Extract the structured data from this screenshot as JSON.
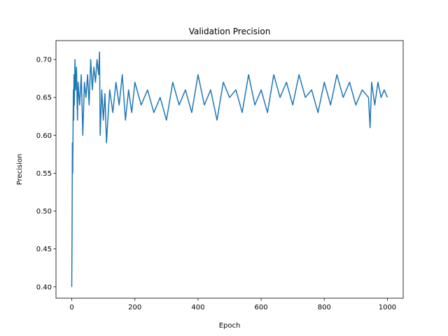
{
  "chart_data": {
    "type": "line",
    "title": "Validation Precision",
    "xlabel": "Epoch",
    "ylabel": "Precision",
    "xlim": [
      -50,
      1050
    ],
    "ylim": [
      0.385,
      0.725
    ],
    "xticks": [
      0,
      200,
      400,
      600,
      800,
      1000
    ],
    "yticks": [
      0.4,
      0.45,
      0.5,
      0.55,
      0.6,
      0.65,
      0.7
    ],
    "xtick_labels": [
      "0",
      "200",
      "400",
      "600",
      "800",
      "1000"
    ],
    "ytick_labels": [
      "0.40",
      "0.45",
      "0.50",
      "0.55",
      "0.60",
      "0.65",
      "0.70"
    ],
    "grid": false,
    "color": "#1f77b4",
    "series": [
      {
        "x": [
          0,
          1,
          2,
          3,
          4,
          5,
          6,
          7,
          8,
          10,
          12,
          15,
          18,
          20,
          25,
          30,
          35,
          40,
          45,
          50,
          55,
          60,
          65,
          70,
          75,
          80,
          85,
          88,
          90,
          95,
          100,
          105,
          110,
          120,
          130,
          140,
          150,
          160,
          170,
          180,
          190,
          200,
          220,
          240,
          260,
          280,
          300,
          320,
          340,
          360,
          380,
          400,
          420,
          440,
          460,
          480,
          500,
          520,
          540,
          560,
          580,
          600,
          620,
          640,
          660,
          680,
          700,
          720,
          740,
          760,
          780,
          800,
          820,
          840,
          860,
          880,
          900,
          920,
          940,
          945,
          950,
          960,
          970,
          980,
          990,
          1000
        ],
        "y": [
          0.4,
          0.48,
          0.59,
          0.55,
          0.6,
          0.66,
          0.62,
          0.68,
          0.64,
          0.7,
          0.66,
          0.69,
          0.62,
          0.67,
          0.64,
          0.68,
          0.6,
          0.67,
          0.65,
          0.68,
          0.64,
          0.7,
          0.66,
          0.69,
          0.67,
          0.7,
          0.68,
          0.71,
          0.6,
          0.66,
          0.62,
          0.655,
          0.59,
          0.66,
          0.63,
          0.67,
          0.64,
          0.68,
          0.62,
          0.66,
          0.63,
          0.67,
          0.64,
          0.66,
          0.63,
          0.65,
          0.62,
          0.67,
          0.64,
          0.66,
          0.63,
          0.68,
          0.64,
          0.66,
          0.62,
          0.67,
          0.65,
          0.66,
          0.63,
          0.68,
          0.64,
          0.66,
          0.63,
          0.68,
          0.65,
          0.67,
          0.64,
          0.68,
          0.65,
          0.66,
          0.63,
          0.67,
          0.64,
          0.68,
          0.65,
          0.67,
          0.64,
          0.66,
          0.65,
          0.61,
          0.67,
          0.64,
          0.67,
          0.65,
          0.66,
          0.65
        ]
      }
    ]
  }
}
